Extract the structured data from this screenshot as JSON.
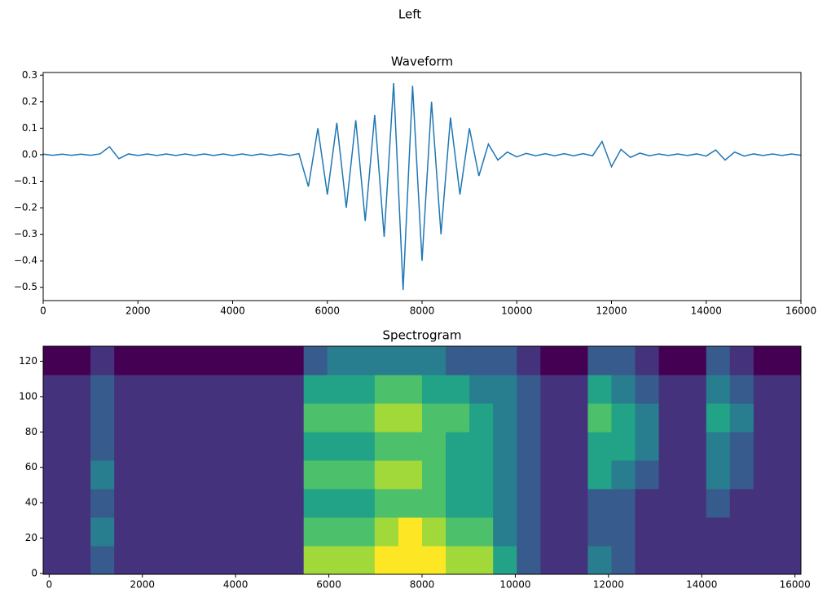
{
  "title": "Left",
  "chart_data": [
    {
      "type": "line",
      "title": "Waveform",
      "color": "#1f77b4",
      "x": [
        0,
        200,
        400,
        600,
        800,
        1000,
        1200,
        1400,
        1600,
        1800,
        2000,
        2200,
        2400,
        2600,
        2800,
        3000,
        3200,
        3400,
        3600,
        3800,
        4000,
        4200,
        4400,
        4600,
        4800,
        5000,
        5200,
        5400,
        5600,
        5800,
        6000,
        6200,
        6400,
        6600,
        6800,
        7000,
        7200,
        7400,
        7600,
        7800,
        8000,
        8200,
        8400,
        8600,
        8800,
        9000,
        9200,
        9400,
        9600,
        9800,
        10000,
        10200,
        10400,
        10600,
        10800,
        11000,
        11200,
        11400,
        11600,
        11800,
        12000,
        12200,
        12400,
        12600,
        12800,
        13000,
        13200,
        13400,
        13600,
        13800,
        14000,
        14200,
        14400,
        14600,
        14800,
        15000,
        15200,
        15400,
        15600,
        15800,
        16000
      ],
      "values": [
        0.002,
        -0.002,
        0.002,
        -0.002,
        0.002,
        -0.002,
        0.003,
        0.03,
        -0.015,
        0.003,
        -0.003,
        0.003,
        -0.003,
        0.003,
        -0.003,
        0.003,
        -0.003,
        0.003,
        -0.003,
        0.003,
        -0.003,
        0.003,
        -0.003,
        0.003,
        -0.003,
        0.003,
        -0.003,
        0.004,
        -0.12,
        0.1,
        -0.15,
        0.12,
        -0.2,
        0.13,
        -0.25,
        0.15,
        -0.31,
        0.27,
        -0.51,
        0.26,
        -0.4,
        0.2,
        -0.3,
        0.14,
        -0.15,
        0.1,
        -0.08,
        0.04,
        -0.02,
        0.01,
        -0.008,
        0.005,
        -0.004,
        0.004,
        -0.004,
        0.004,
        -0.004,
        0.004,
        -0.004,
        0.05,
        -0.045,
        0.02,
        -0.01,
        0.006,
        -0.004,
        0.003,
        -0.003,
        0.003,
        -0.003,
        0.003,
        -0.005,
        0.018,
        -0.02,
        0.01,
        -0.005,
        0.003,
        -0.003,
        0.003,
        -0.003,
        0.003,
        -0.002
      ],
      "xlim": [
        0,
        16000
      ],
      "xticks": [
        0,
        2000,
        4000,
        6000,
        8000,
        10000,
        12000,
        14000,
        16000
      ],
      "ylim": [
        -0.55,
        0.31
      ],
      "yticks": [
        0.3,
        0.2,
        0.1,
        {
          "value": 0,
          "label": "0.0"
        },
        {
          "value": -0.1,
          "label": "−0.1"
        },
        {
          "value": -0.2,
          "label": "−0.2"
        },
        {
          "value": -0.3,
          "label": "−0.3"
        },
        {
          "value": -0.4,
          "label": "−0.4"
        },
        {
          "value": -0.5,
          "label": "−0.5"
        }
      ]
    },
    {
      "type": "heatmap",
      "title": "Spectrogram",
      "colormap": "viridis",
      "values": [
        [
          3,
          3,
          4,
          3,
          3,
          3,
          3,
          3,
          3,
          3,
          3,
          8,
          8,
          8,
          9,
          9,
          9,
          8,
          8,
          6,
          4,
          3,
          3,
          5,
          4,
          3,
          3,
          3,
          3,
          3,
          3,
          3
        ],
        [
          3,
          3,
          5,
          3,
          3,
          3,
          3,
          3,
          3,
          3,
          3,
          7,
          7,
          7,
          8,
          9,
          8,
          7,
          7,
          5,
          4,
          3,
          3,
          4,
          4,
          3,
          3,
          3,
          3,
          3,
          3,
          3
        ],
        [
          3,
          3,
          4,
          3,
          3,
          3,
          3,
          3,
          3,
          3,
          3,
          6,
          6,
          6,
          7,
          7,
          7,
          6,
          6,
          5,
          4,
          3,
          3,
          4,
          4,
          3,
          3,
          3,
          4,
          3,
          3,
          3
        ],
        [
          3,
          3,
          5,
          3,
          3,
          3,
          3,
          3,
          3,
          3,
          3,
          7,
          7,
          7,
          8,
          8,
          7,
          6,
          6,
          5,
          4,
          3,
          3,
          6,
          5,
          4,
          3,
          3,
          5,
          4,
          3,
          3
        ],
        [
          3,
          3,
          4,
          3,
          3,
          3,
          3,
          3,
          3,
          3,
          3,
          6,
          6,
          6,
          7,
          7,
          7,
          6,
          6,
          5,
          4,
          3,
          3,
          6,
          6,
          5,
          3,
          3,
          5,
          4,
          3,
          3
        ],
        [
          3,
          3,
          4,
          3,
          3,
          3,
          3,
          3,
          3,
          3,
          3,
          7,
          7,
          7,
          8,
          8,
          7,
          7,
          6,
          5,
          4,
          3,
          3,
          7,
          6,
          5,
          3,
          3,
          6,
          5,
          3,
          3
        ],
        [
          3,
          3,
          4,
          3,
          3,
          3,
          3,
          3,
          3,
          3,
          3,
          6,
          6,
          6,
          7,
          7,
          6,
          6,
          5,
          5,
          4,
          3,
          3,
          6,
          5,
          4,
          3,
          3,
          5,
          4,
          3,
          3
        ],
        [
          2,
          2,
          3,
          2,
          2,
          2,
          2,
          2,
          2,
          2,
          2,
          4,
          5,
          5,
          5,
          5,
          5,
          4,
          4,
          4,
          3,
          2,
          2,
          4,
          4,
          3,
          2,
          2,
          4,
          3,
          2,
          2
        ]
      ],
      "xlim": [
        -128,
        16128
      ],
      "xticks": [
        0,
        2000,
        4000,
        6000,
        8000,
        10000,
        12000,
        14000,
        16000
      ],
      "ylim": [
        -0.5,
        128.5
      ],
      "yticks": [
        0,
        20,
        40,
        60,
        80,
        100,
        120
      ]
    }
  ]
}
